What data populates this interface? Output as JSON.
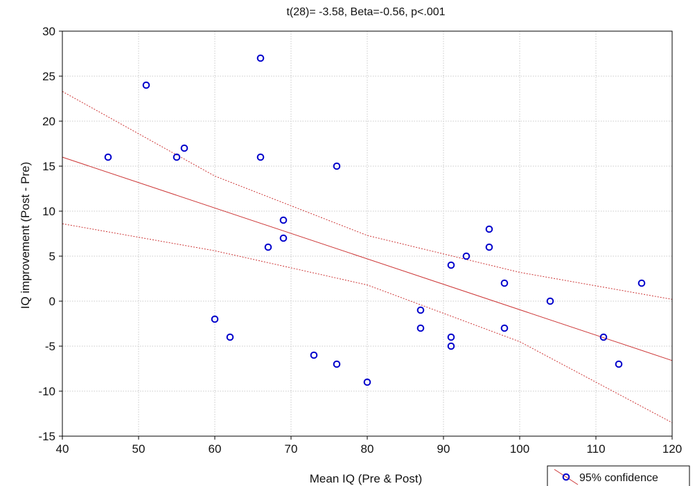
{
  "chart_data": {
    "type": "scatter",
    "title": "t(28)= -3.58, Beta=-0.56, p<.001",
    "xlabel": "Mean IQ (Pre & Post)",
    "ylabel": "IQ improvement (Post - Pre)",
    "xlim": [
      40,
      120
    ],
    "ylim": [
      -15,
      30
    ],
    "xticks": [
      40,
      50,
      60,
      70,
      80,
      90,
      100,
      110,
      120
    ],
    "yticks": [
      -15,
      -10,
      -5,
      0,
      5,
      10,
      15,
      20,
      25,
      30
    ],
    "grid": true,
    "legend": {
      "label": "95% confidence",
      "placement": "bottom-right"
    },
    "colors": {
      "points": "#0000cc",
      "fit": "#cc3333",
      "grid": "#c8c8c8"
    },
    "points": [
      {
        "x": 46,
        "y": 16
      },
      {
        "x": 51,
        "y": 24
      },
      {
        "x": 55,
        "y": 16
      },
      {
        "x": 56,
        "y": 17
      },
      {
        "x": 60,
        "y": -2
      },
      {
        "x": 62,
        "y": -4
      },
      {
        "x": 66,
        "y": 27
      },
      {
        "x": 66,
        "y": 16
      },
      {
        "x": 67,
        "y": 6
      },
      {
        "x": 69,
        "y": 9
      },
      {
        "x": 69,
        "y": 7
      },
      {
        "x": 73,
        "y": -6
      },
      {
        "x": 76,
        "y": 15
      },
      {
        "x": 76,
        "y": -7
      },
      {
        "x": 80,
        "y": -9
      },
      {
        "x": 87,
        "y": -1
      },
      {
        "x": 87,
        "y": -3
      },
      {
        "x": 91,
        "y": 4
      },
      {
        "x": 91,
        "y": -4
      },
      {
        "x": 91,
        "y": -5
      },
      {
        "x": 93,
        "y": 5
      },
      {
        "x": 96,
        "y": 8
      },
      {
        "x": 96,
        "y": 6
      },
      {
        "x": 98,
        "y": 2
      },
      {
        "x": 98,
        "y": -3
      },
      {
        "x": 104,
        "y": 0
      },
      {
        "x": 111,
        "y": -4
      },
      {
        "x": 113,
        "y": -7
      },
      {
        "x": 116,
        "y": 2
      }
    ],
    "fit_line": {
      "x": [
        40,
        120
      ],
      "y": [
        16,
        -6.6
      ]
    },
    "confidence_upper": {
      "x": [
        40,
        60,
        80,
        100,
        120
      ],
      "y": [
        23.3,
        13.9,
        7.3,
        3.2,
        0.2
      ]
    },
    "confidence_lower": {
      "x": [
        40,
        60,
        80,
        100,
        120
      ],
      "y": [
        8.6,
        5.6,
        1.8,
        -4.5,
        -13.5
      ]
    }
  }
}
